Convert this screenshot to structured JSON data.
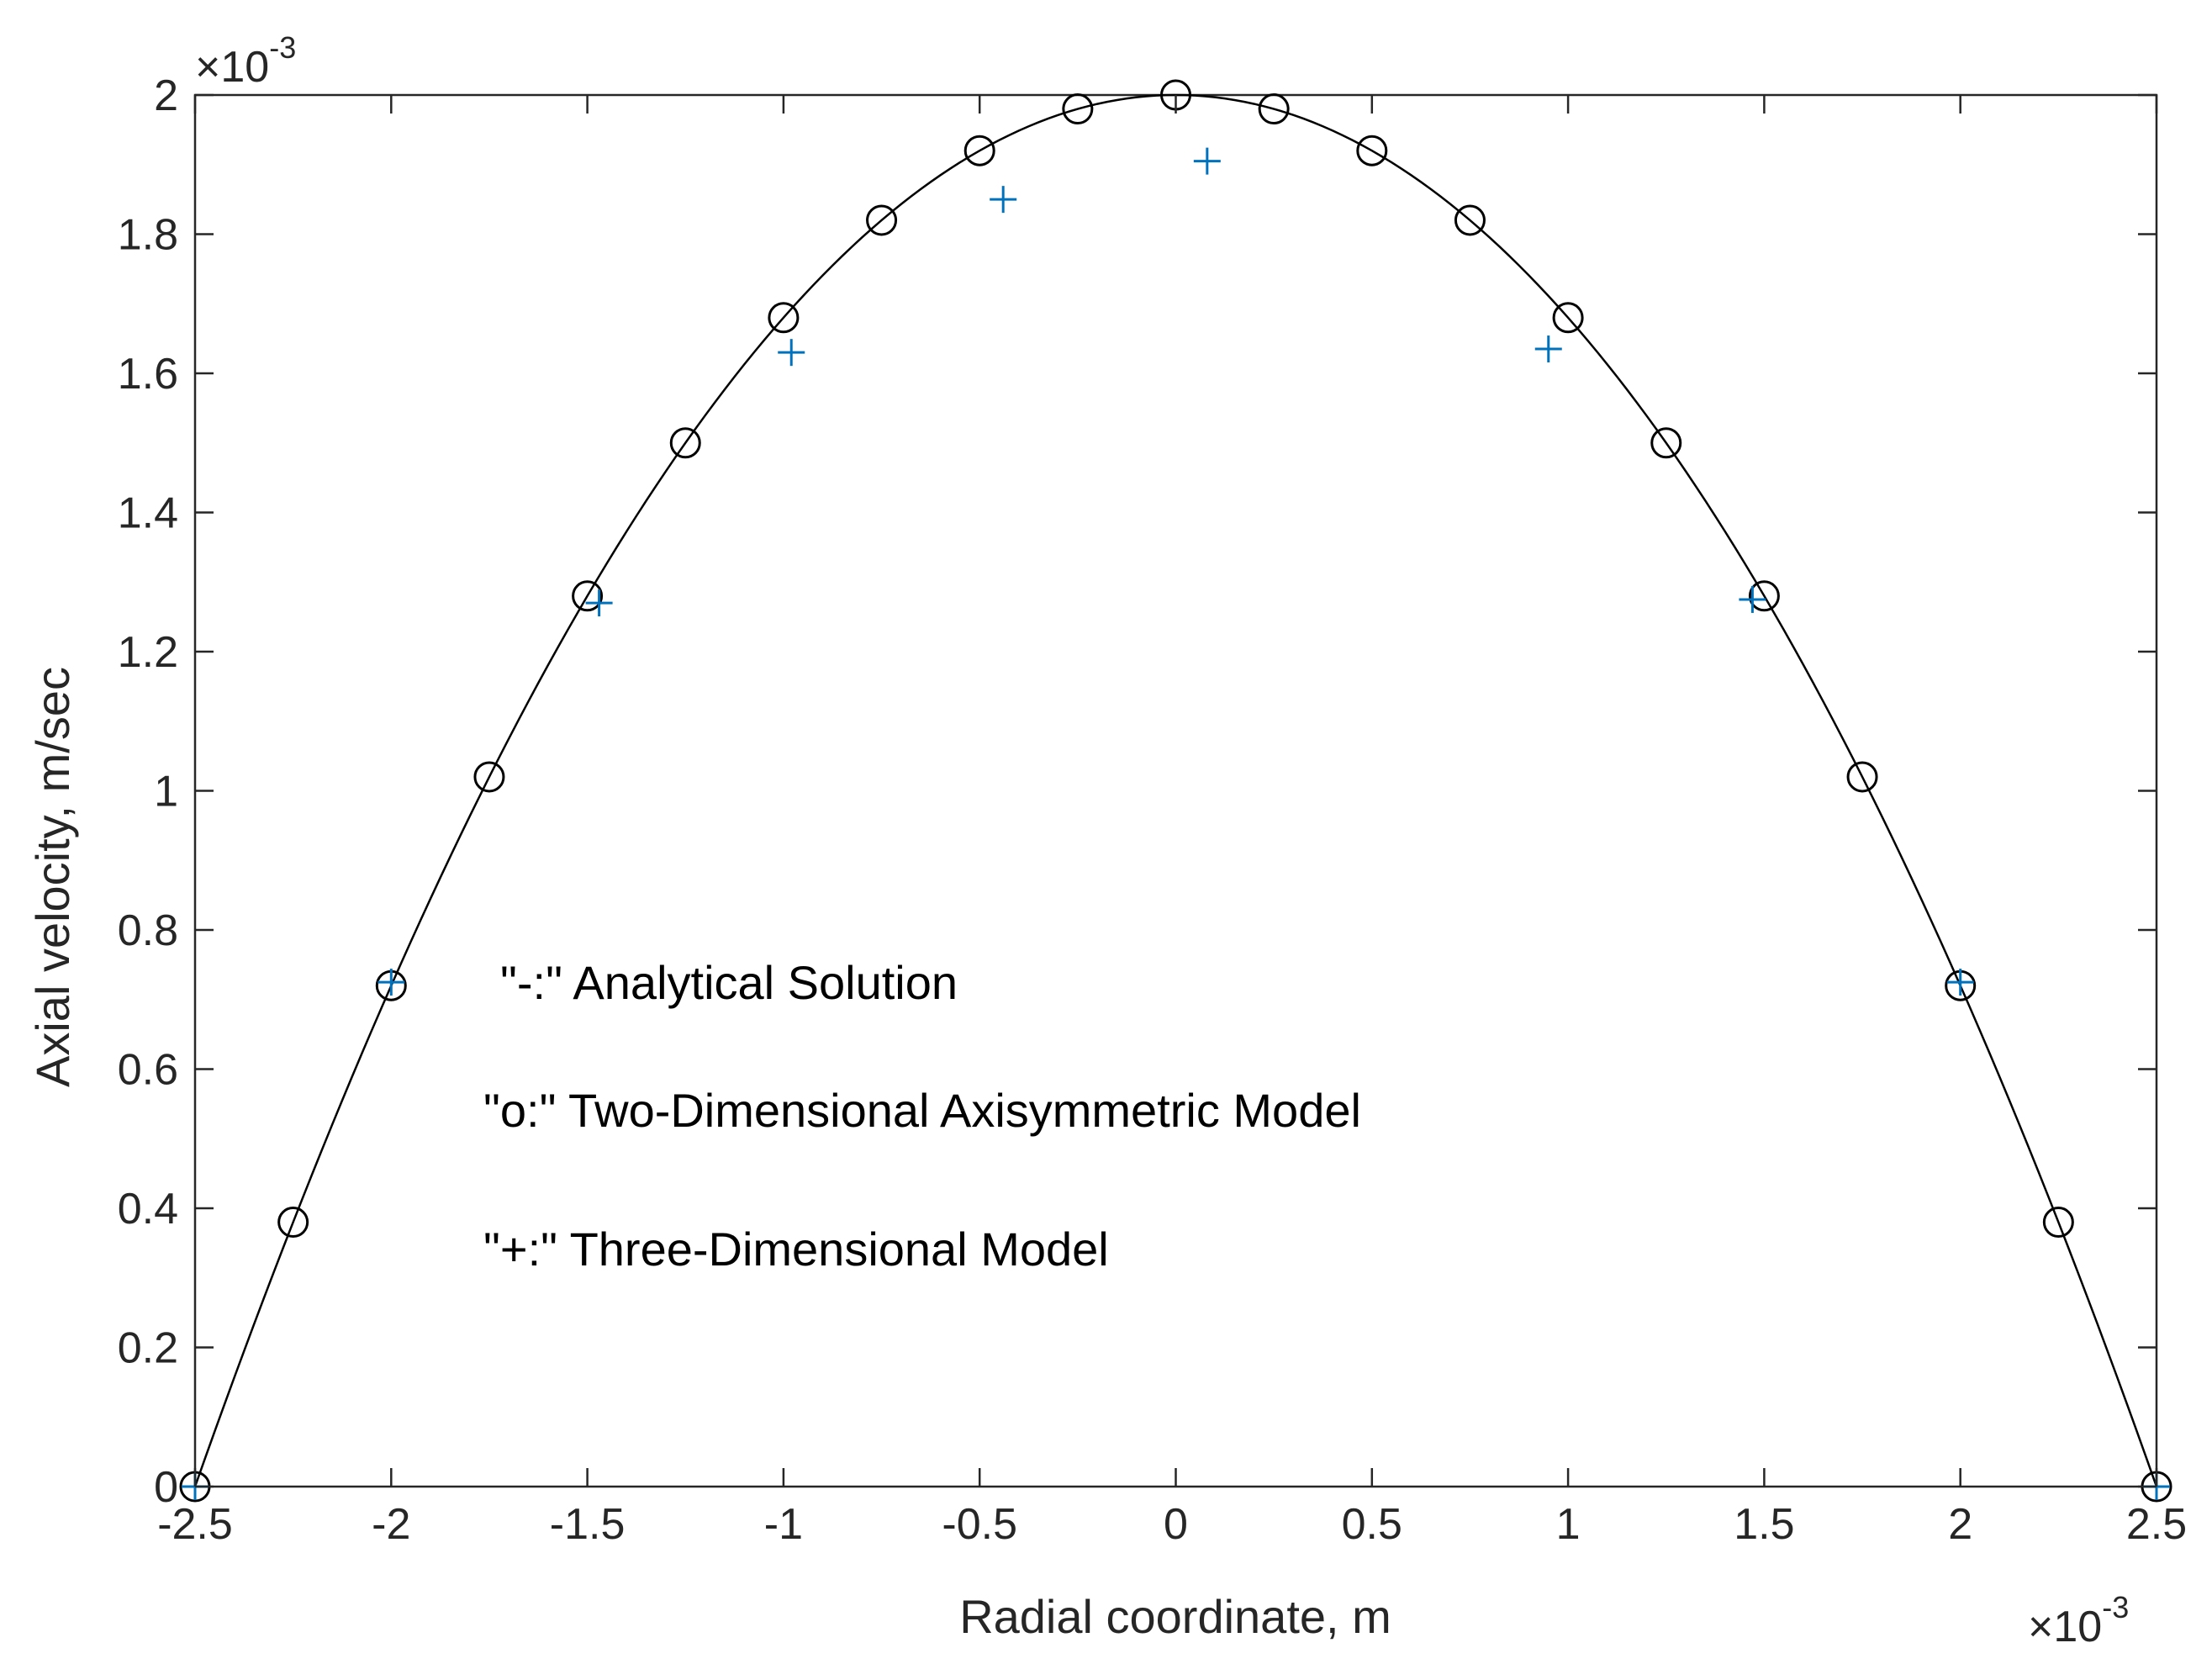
{
  "chart_data": {
    "type": "line",
    "xlabel": "Radial coordinate, m",
    "ylabel": "Axial velocity, m/sec",
    "x_multiplier_label": {
      "prefix": "×10",
      "exponent": "-3"
    },
    "y_multiplier_label": {
      "prefix": "×10",
      "exponent": "-3"
    },
    "xlim": [
      -2.5,
      2.5
    ],
    "ylim": [
      0,
      2.0
    ],
    "x_ticks": [
      -2.5,
      -2,
      -1.5,
      -1,
      -0.5,
      0,
      0.5,
      1,
      1.5,
      2,
      2.5
    ],
    "x_tick_labels": [
      "-2.5",
      "-2",
      "-1.5",
      "-1",
      "-0.5",
      "0",
      "0.5",
      "1",
      "1.5",
      "2",
      "2.5"
    ],
    "y_ticks": [
      0,
      0.2,
      0.4,
      0.6,
      0.8,
      1,
      1.2,
      1.4,
      1.6,
      1.8,
      2
    ],
    "y_tick_labels": [
      "0",
      "0.2",
      "0.4",
      "0.6",
      "0.8",
      "1",
      "1.2",
      "1.4",
      "1.6",
      "1.8",
      "2"
    ],
    "grid": false,
    "series": [
      {
        "marker": "line",
        "color": "#000000",
        "function": "parabola",
        "vmax": 2.0,
        "R": 2.5
      },
      {
        "marker": "circle",
        "color": "#000000",
        "x": [
          -2.5,
          -2.25,
          -2,
          -1.75,
          -1.5,
          -1.25,
          -1,
          -0.75,
          -0.5,
          -0.25,
          0,
          0.25,
          0.5,
          0.75,
          1,
          1.25,
          1.5,
          1.75,
          2,
          2.25,
          2.5
        ],
        "y": [
          0,
          0.38,
          0.72,
          1.02,
          1.28,
          1.5,
          1.68,
          1.82,
          1.92,
          1.98,
          2.0,
          1.98,
          1.92,
          1.82,
          1.68,
          1.5,
          1.28,
          1.02,
          0.72,
          0.38,
          0
        ]
      },
      {
        "marker": "plus",
        "color": "#0072BD",
        "x": [
          -2.5,
          -2.0,
          -1.47,
          -0.98,
          -0.44,
          0.08,
          0.95,
          1.47,
          2.0,
          2.5
        ],
        "y": [
          0,
          0.725,
          1.27,
          1.63,
          1.85,
          1.905,
          1.635,
          1.275,
          0.725,
          0
        ]
      }
    ],
    "annotations": [
      "\"-:\" Analytical Solution",
      "\"o:\" Two-Dimensional Axisymmetric Model",
      "\"+:\" Three-Dimensional Model"
    ]
  }
}
